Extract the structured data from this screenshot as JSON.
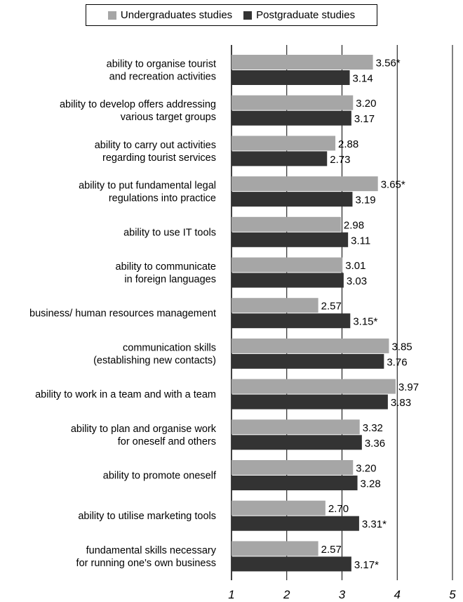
{
  "legend": {
    "undergraduate_label": "Undergraduates studies",
    "postgraduate_label": "Postgraduate studies"
  },
  "colors": {
    "undergraduate": "#a6a6a6",
    "postgraduate": "#333333",
    "gridline": "#000000"
  },
  "chart_data": {
    "type": "bar",
    "orientation": "horizontal",
    "categories": [
      [
        "ability to organise tourist",
        "and recreation activities"
      ],
      [
        "ability to develop offers addressing",
        "various target groups"
      ],
      [
        "ability to carry out activities",
        "regarding tourist services"
      ],
      [
        "ability to put fundamental legal",
        "regulations into practice"
      ],
      [
        "ability to use IT tools"
      ],
      [
        "ability to communicate",
        "in foreign languages"
      ],
      [
        "business/ human resources management"
      ],
      [
        "communication skills",
        "(establishing new contacts)"
      ],
      [
        "ability to work in a team and with a team"
      ],
      [
        "ability to plan and organise work",
        "for oneself and others"
      ],
      [
        "ability to promote oneself"
      ],
      [
        "ability to utilise marketing tools"
      ],
      [
        "fundamental skills necessary",
        "for running one's own business"
      ]
    ],
    "series": [
      {
        "name": "Undergraduates studies",
        "values": [
          3.56,
          3.2,
          2.88,
          3.65,
          2.98,
          3.01,
          2.57,
          3.85,
          3.97,
          3.32,
          3.2,
          2.7,
          2.57
        ],
        "labels": [
          "3.56*",
          "3.20",
          "2.88",
          "3.65*",
          "2.98",
          "3.01",
          "2.57",
          "3.85",
          "3.97",
          "3.32",
          "3.20",
          "2.70",
          "2.57"
        ]
      },
      {
        "name": "Postgraduate studies",
        "values": [
          3.14,
          3.17,
          2.73,
          3.19,
          3.11,
          3.03,
          3.15,
          3.76,
          3.83,
          3.36,
          3.28,
          3.31,
          3.17
        ],
        "labels": [
          "3.14",
          "3.17",
          "2.73",
          "3.19",
          "3.11",
          "3.03",
          "3.15*",
          "3.76",
          "3.83",
          "3.36",
          "3.28",
          "3.31*",
          "3.17*"
        ]
      }
    ],
    "xlim": [
      1,
      5
    ],
    "xticks": [
      "1",
      "2",
      "3",
      "4",
      "5"
    ],
    "grid": "vertical",
    "legend_position": "top"
  }
}
